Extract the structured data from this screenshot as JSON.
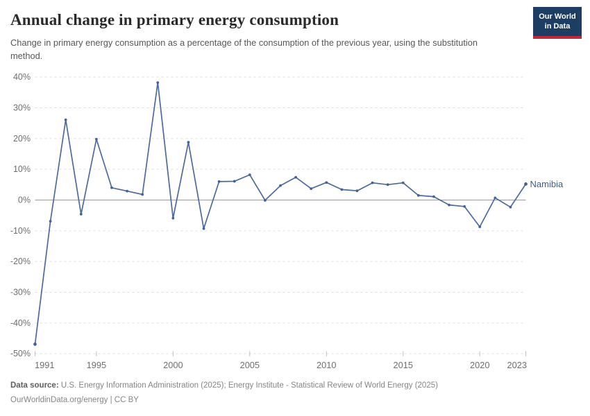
{
  "header": {
    "title": "Annual change in primary energy consumption",
    "logo": {
      "line1": "Our World",
      "line2": "in Data"
    }
  },
  "subtitle": "Change in primary energy consumption as a percentage of the consumption of the previous year, using the substitution method.",
  "footer": {
    "datasource_label": "Data source:",
    "datasource_text": " U.S. Energy Information Administration (2025); Energy Institute - Statistical Review of World Energy (2025)",
    "license": "OurWorldinData.org/energy | CC BY"
  },
  "colors": {
    "line": "#4c6a9c",
    "point": "#44629a",
    "entity_label": "#3d5c8f",
    "logo_bg": "#1d3d63",
    "logo_stripe": "#c0293c",
    "grid": "#dddddd",
    "zero_line": "#9a9a9a",
    "tick": "#c0c0c0",
    "axis_text": "#6e6e6e"
  },
  "chart_data": {
    "type": "line",
    "title": "Annual change in primary energy consumption",
    "entity": "Namibia",
    "unit": "%",
    "x": [
      1991,
      1992,
      1993,
      1994,
      1995,
      1996,
      1997,
      1998,
      1999,
      2000,
      2001,
      2002,
      2003,
      2004,
      2005,
      2006,
      2007,
      2008,
      2009,
      2010,
      2011,
      2012,
      2013,
      2014,
      2015,
      2016,
      2017,
      2018,
      2019,
      2020,
      2021,
      2022,
      2023
    ],
    "values": [
      -46.9,
      -6.9,
      26.1,
      -4.6,
      19.8,
      4.0,
      2.9,
      1.8,
      38.2,
      -5.9,
      18.8,
      -9.3,
      6.0,
      6.1,
      8.2,
      -0.1,
      4.7,
      7.4,
      3.7,
      5.7,
      3.4,
      3.0,
      5.6,
      5.0,
      5.6,
      1.5,
      1.1,
      -1.6,
      -2.1,
      -8.7,
      0.7,
      -2.3,
      5.2
    ],
    "ylim": [
      -50,
      40
    ],
    "yticks": [
      -50,
      -40,
      -30,
      -20,
      -10,
      0,
      10,
      20,
      30,
      40
    ],
    "xticks": [
      1991,
      1995,
      2000,
      2005,
      2010,
      2015,
      2020,
      2023
    ],
    "grid": true,
    "legend_position": "end-of-line-label"
  }
}
